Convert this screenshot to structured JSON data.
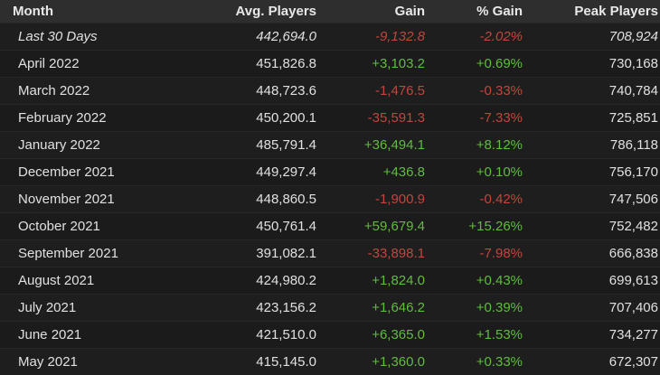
{
  "header": {
    "month": "Month",
    "avg": "Avg. Players",
    "gain": "Gain",
    "pct": "% Gain",
    "peak": "Peak Players"
  },
  "rows": [
    {
      "month": "Last 30 Days",
      "avg": "442,694.0",
      "gain": "-9,132.8",
      "pct": "-2.02%",
      "peak": "708,924",
      "trend": "neg"
    },
    {
      "month": "April 2022",
      "avg": "451,826.8",
      "gain": "+3,103.2",
      "pct": "+0.69%",
      "peak": "730,168",
      "trend": "pos"
    },
    {
      "month": "March 2022",
      "avg": "448,723.6",
      "gain": "-1,476.5",
      "pct": "-0.33%",
      "peak": "740,784",
      "trend": "neg"
    },
    {
      "month": "February 2022",
      "avg": "450,200.1",
      "gain": "-35,591.3",
      "pct": "-7.33%",
      "peak": "725,851",
      "trend": "neg"
    },
    {
      "month": "January 2022",
      "avg": "485,791.4",
      "gain": "+36,494.1",
      "pct": "+8.12%",
      "peak": "786,118",
      "trend": "pos"
    },
    {
      "month": "December 2021",
      "avg": "449,297.4",
      "gain": "+436.8",
      "pct": "+0.10%",
      "peak": "756,170",
      "trend": "pos"
    },
    {
      "month": "November 2021",
      "avg": "448,860.5",
      "gain": "-1,900.9",
      "pct": "-0.42%",
      "peak": "747,506",
      "trend": "neg"
    },
    {
      "month": "October 2021",
      "avg": "450,761.4",
      "gain": "+59,679.4",
      "pct": "+15.26%",
      "peak": "752,482",
      "trend": "pos"
    },
    {
      "month": "September 2021",
      "avg": "391,082.1",
      "gain": "-33,898.1",
      "pct": "-7.98%",
      "peak": "666,838",
      "trend": "neg"
    },
    {
      "month": "August 2021",
      "avg": "424,980.2",
      "gain": "+1,824.0",
      "pct": "+0.43%",
      "peak": "699,613",
      "trend": "pos"
    },
    {
      "month": "July 2021",
      "avg": "423,156.2",
      "gain": "+1,646.2",
      "pct": "+0.39%",
      "peak": "707,406",
      "trend": "pos"
    },
    {
      "month": "June 2021",
      "avg": "421,510.0",
      "gain": "+6,365.0",
      "pct": "+1.53%",
      "peak": "734,277",
      "trend": "pos"
    },
    {
      "month": "May 2021",
      "avg": "415,145.0",
      "gain": "+1,360.0",
      "pct": "+0.33%",
      "peak": "672,307",
      "trend": "pos"
    }
  ],
  "colors": {
    "positive": "#5fbd3e",
    "negative": "#c0473b",
    "header_bg": "#2e2e2e",
    "row_bg": "#1e1e1e"
  }
}
